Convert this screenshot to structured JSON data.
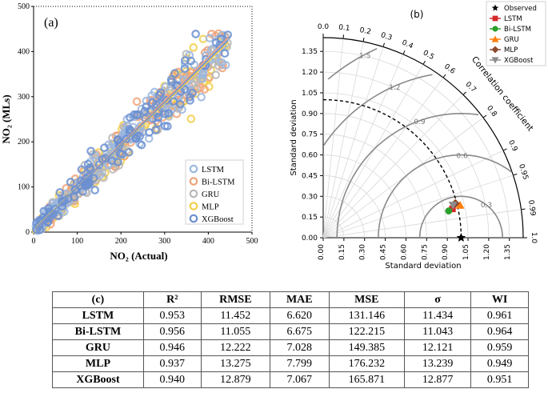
{
  "panels": {
    "a_label": "(a)",
    "b_label": "(b)",
    "c_label": "(c)"
  },
  "chart_data": [
    {
      "type": "scatter",
      "title": "(a)",
      "xlabel": "NO₂ (Actual)",
      "ylabel": "NO₂ (MLs)",
      "xlim": [
        0,
        500
      ],
      "ylim": [
        0,
        500
      ],
      "xticks": [
        0,
        100,
        200,
        300,
        400,
        500
      ],
      "yticks": [
        0,
        100,
        200,
        300,
        400,
        500
      ],
      "legend": [
        "LSTM",
        "Bi-LSTM",
        "GRU",
        "MLP",
        "XGBoost"
      ],
      "legend_position": "bottom-right",
      "series": [
        {
          "name": "LSTM",
          "color": "#9bb7e0",
          "fit": {
            "slope": 0.95,
            "intercept": 4
          }
        },
        {
          "name": "Bi-LSTM",
          "color": "#f0a27a",
          "fit": {
            "slope": 0.96,
            "intercept": 3
          }
        },
        {
          "name": "GRU",
          "color": "#b8b8b8",
          "fit": {
            "slope": 0.94,
            "intercept": 5
          }
        },
        {
          "name": "MLP",
          "color": "#f2cf4b",
          "fit": {
            "slope": 0.93,
            "intercept": 6
          }
        },
        {
          "name": "XGBoost",
          "color": "#6b8fd1",
          "fit": {
            "slope": 0.945,
            "intercept": 4
          }
        }
      ],
      "points_note": "about 400 points per model scattered around the 1:1 line, x from 0 to 450"
    },
    {
      "type": "scatter",
      "title": "(b)",
      "kind": "taylor-diagram",
      "xlabel": "Standard deviation",
      "ylabel": "Standard deviation",
      "angular_label": "Correlation coefficient",
      "std_ticks": [
        "0.00",
        "0.15",
        "0.30",
        "0.45",
        "0.60",
        "0.75",
        "0.90",
        "1.05",
        "1.20",
        "1.35"
      ],
      "std_max": 1.45,
      "corr_ticks": [
        "0.0",
        "0.1",
        "0.2",
        "0.3",
        "0.4",
        "0.5",
        "0.6",
        "0.7",
        "0.8",
        "0.9",
        "0.95",
        "0.99",
        "1.0"
      ],
      "rmsd_labels": [
        "0.3",
        "0.6",
        "0.9",
        "1.2",
        "1.5"
      ],
      "observed_std": 1.0,
      "legend": [
        "Observed",
        "LSTM",
        "Bi-LSTM",
        "GRU",
        "MLP",
        "XGBoost"
      ],
      "legend_position": "top-right",
      "points": [
        {
          "name": "Observed",
          "std": 1.0,
          "corr": 1.0,
          "color": "#000000",
          "marker": "star"
        },
        {
          "name": "LSTM",
          "std": 0.96,
          "corr": 0.976,
          "color": "#d62728",
          "marker": "square"
        },
        {
          "name": "Bi-LSTM",
          "std": 0.93,
          "corr": 0.978,
          "color": "#2ca02c",
          "marker": "circle"
        },
        {
          "name": "GRU",
          "std": 1.02,
          "corr": 0.973,
          "color": "#ff7f0e",
          "marker": "triangle"
        },
        {
          "name": "MLP",
          "std": 0.99,
          "corr": 0.968,
          "color": "#8c4a2f",
          "marker": "diamond"
        },
        {
          "name": "XGBoost",
          "std": 0.97,
          "corr": 0.97,
          "color": "#8c8c8c",
          "marker": "triangle-down"
        }
      ]
    },
    {
      "type": "table",
      "title": "(c)",
      "headers": [
        "R²",
        "RMSE",
        "MAE",
        "MSE",
        "σ",
        "WI"
      ],
      "rows": [
        {
          "model": "LSTM",
          "values": [
            "0.953",
            "11.452",
            "6.620",
            "131.146",
            "11.434",
            "0.961"
          ]
        },
        {
          "model": "Bi-LSTM",
          "values": [
            "0.956",
            "11.055",
            "6.675",
            "122.215",
            "11.043",
            "0.964"
          ]
        },
        {
          "model": "GRU",
          "values": [
            "0.946",
            "12.222",
            "7.028",
            "149.385",
            "12.121",
            "0.959"
          ]
        },
        {
          "model": "MLP",
          "values": [
            "0.937",
            "13.275",
            "7.799",
            "176.232",
            "13.239",
            "0.949"
          ]
        },
        {
          "model": "XGBoost",
          "values": [
            "0.940",
            "12.879",
            "7.067",
            "165.871",
            "12.877",
            "0.951"
          ]
        }
      ]
    }
  ]
}
